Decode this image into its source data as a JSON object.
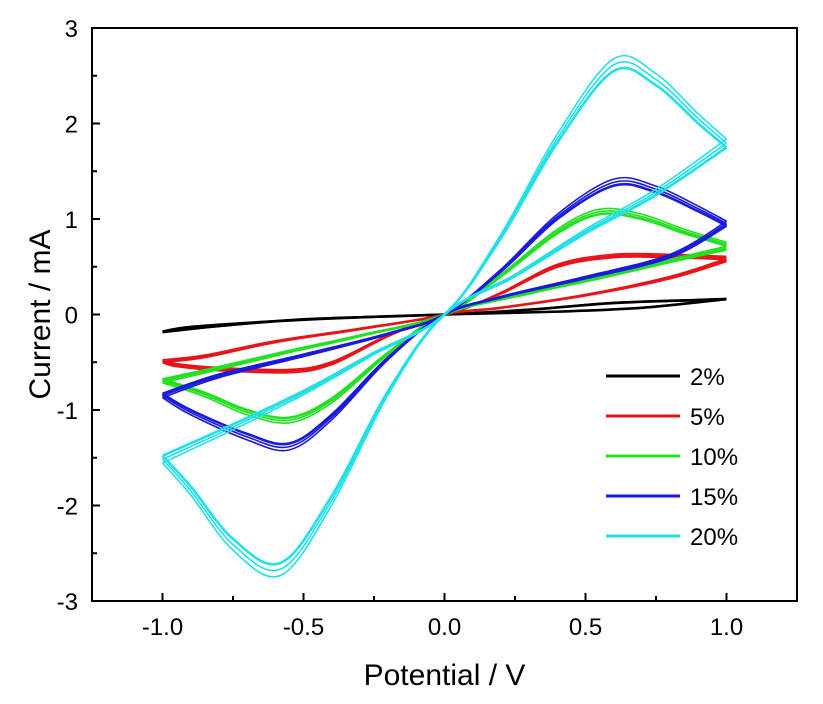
{
  "chart_data": {
    "type": "line",
    "xlabel": "Potential / V",
    "ylabel": "Current / mA",
    "xlim": [
      -1.25,
      1.25
    ],
    "ylim": [
      -3,
      3
    ],
    "x_ticks": [
      {
        "value": -1.0,
        "label": "-1.0"
      },
      {
        "value": -0.5,
        "label": "-0.5"
      },
      {
        "value": 0.0,
        "label": "0.0"
      },
      {
        "value": 0.5,
        "label": "0.5"
      },
      {
        "value": 1.0,
        "label": "1.0"
      }
    ],
    "y_ticks": [
      {
        "value": -3,
        "label": "-3"
      },
      {
        "value": -2,
        "label": "-2"
      },
      {
        "value": -1,
        "label": "-1"
      },
      {
        "value": 0,
        "label": "0"
      },
      {
        "value": 1,
        "label": "1"
      },
      {
        "value": 2,
        "label": "2"
      },
      {
        "value": 3,
        "label": "3"
      }
    ],
    "grid": false,
    "legend_position": "bottom-right",
    "series": [
      {
        "name": "2%",
        "color": "#000000",
        "forward": [
          [
            -1.0,
            -0.18
          ],
          [
            -0.8,
            -0.12
          ],
          [
            -0.5,
            -0.05
          ],
          [
            -0.2,
            -0.02
          ],
          [
            0.0,
            0.0
          ],
          [
            0.3,
            0.05
          ],
          [
            0.6,
            0.12
          ],
          [
            0.9,
            0.15
          ],
          [
            1.0,
            0.16
          ]
        ],
        "reverse": [
          [
            1.0,
            0.16
          ],
          [
            0.7,
            0.07
          ],
          [
            0.4,
            0.03
          ],
          [
            0.0,
            0.0
          ],
          [
            -0.3,
            -0.03
          ],
          [
            -0.6,
            -0.07
          ],
          [
            -0.9,
            -0.13
          ],
          [
            -1.0,
            -0.18
          ]
        ]
      },
      {
        "name": "5%",
        "color": "#e8141a",
        "forward": [
          [
            -1.0,
            -0.48
          ],
          [
            -0.85,
            -0.43
          ],
          [
            -0.6,
            -0.28
          ],
          [
            -0.3,
            -0.15
          ],
          [
            0.0,
            0.0
          ],
          [
            0.2,
            0.22
          ],
          [
            0.4,
            0.5
          ],
          [
            0.6,
            0.6
          ],
          [
            0.8,
            0.6
          ],
          [
            1.0,
            0.58
          ]
        ],
        "reverse": [
          [
            1.0,
            0.56
          ],
          [
            0.8,
            0.38
          ],
          [
            0.5,
            0.2
          ],
          [
            0.2,
            0.07
          ],
          [
            0.0,
            0.0
          ],
          [
            -0.2,
            -0.22
          ],
          [
            -0.4,
            -0.5
          ],
          [
            -0.55,
            -0.58
          ],
          [
            -0.8,
            -0.56
          ],
          [
            -0.95,
            -0.52
          ],
          [
            -1.0,
            -0.48
          ]
        ]
      },
      {
        "name": "10%",
        "color": "#22e022",
        "forward": [
          [
            -1.0,
            -0.68
          ],
          [
            -0.8,
            -0.55
          ],
          [
            -0.55,
            -0.38
          ],
          [
            -0.3,
            -0.22
          ],
          [
            0.0,
            0.0
          ],
          [
            0.2,
            0.4
          ],
          [
            0.4,
            0.85
          ],
          [
            0.55,
            1.05
          ],
          [
            0.7,
            1.0
          ],
          [
            0.85,
            0.85
          ],
          [
            1.0,
            0.72
          ]
        ],
        "reverse": [
          [
            1.0,
            0.68
          ],
          [
            0.8,
            0.55
          ],
          [
            0.55,
            0.38
          ],
          [
            0.3,
            0.22
          ],
          [
            0.0,
            0.0
          ],
          [
            -0.2,
            -0.4
          ],
          [
            -0.4,
            -0.88
          ],
          [
            -0.55,
            -1.08
          ],
          [
            -0.7,
            -1.0
          ],
          [
            -0.85,
            -0.82
          ],
          [
            -1.0,
            -0.68
          ]
        ]
      },
      {
        "name": "15%",
        "color": "#1a1adc",
        "forward": [
          [
            -1.0,
            -0.83
          ],
          [
            -0.8,
            -0.63
          ],
          [
            -0.5,
            -0.42
          ],
          [
            -0.2,
            -0.2
          ],
          [
            0.0,
            0.0
          ],
          [
            0.2,
            0.45
          ],
          [
            0.4,
            1.0
          ],
          [
            0.6,
            1.35
          ],
          [
            0.75,
            1.28
          ],
          [
            0.9,
            1.08
          ],
          [
            1.0,
            0.93
          ]
        ],
        "reverse": [
          [
            1.0,
            0.93
          ],
          [
            0.8,
            0.6
          ],
          [
            0.5,
            0.38
          ],
          [
            0.2,
            0.18
          ],
          [
            0.0,
            0.0
          ],
          [
            -0.2,
            -0.45
          ],
          [
            -0.4,
            -1.05
          ],
          [
            -0.55,
            -1.35
          ],
          [
            -0.7,
            -1.25
          ],
          [
            -0.9,
            -1.0
          ],
          [
            -1.0,
            -0.83
          ]
        ]
      },
      {
        "name": "20%",
        "color": "#22e0e8",
        "forward": [
          [
            -1.0,
            -1.48
          ],
          [
            -0.75,
            -1.15
          ],
          [
            -0.5,
            -0.8
          ],
          [
            -0.25,
            -0.4
          ],
          [
            0.0,
            0.0
          ],
          [
            0.2,
            0.8
          ],
          [
            0.4,
            1.8
          ],
          [
            0.6,
            2.55
          ],
          [
            0.75,
            2.4
          ],
          [
            0.9,
            2.0
          ],
          [
            1.0,
            1.75
          ]
        ],
        "reverse": [
          [
            1.0,
            1.75
          ],
          [
            0.75,
            1.25
          ],
          [
            0.5,
            0.85
          ],
          [
            0.25,
            0.4
          ],
          [
            0.0,
            0.0
          ],
          [
            -0.2,
            -0.8
          ],
          [
            -0.4,
            -1.9
          ],
          [
            -0.58,
            -2.6
          ],
          [
            -0.75,
            -2.35
          ],
          [
            -0.9,
            -1.8
          ],
          [
            -1.0,
            -1.48
          ]
        ]
      }
    ]
  }
}
